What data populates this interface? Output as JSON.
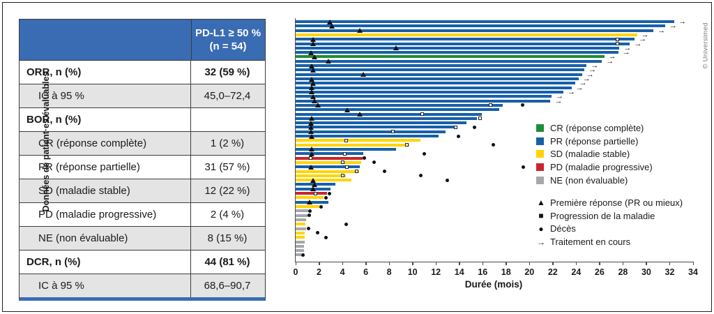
{
  "table": {
    "header": {
      "line1": "PD-L1 ≥ 50 %",
      "line2": "(n = 54)"
    },
    "rows": [
      {
        "label": "ORR, n (%)",
        "value": "32 (59 %)",
        "bold": true,
        "indent": false,
        "shade": false
      },
      {
        "label": "IC à 95 %",
        "value": "45,0–72,4",
        "bold": false,
        "indent": true,
        "shade": true
      },
      {
        "label": "BOR, n (%)",
        "value": "",
        "bold": true,
        "indent": false,
        "shade": false
      },
      {
        "label": "CR (réponse complète)",
        "value": "1 (2 %)",
        "bold": false,
        "indent": true,
        "shade": true
      },
      {
        "label": "PR (réponse partielle)",
        "value": "31 (57 %)",
        "bold": false,
        "indent": true,
        "shade": false
      },
      {
        "label": "SD (maladie stable)",
        "value": "12 (22 %)",
        "bold": false,
        "indent": true,
        "shade": true
      },
      {
        "label": "PD (maladie progressive)",
        "value": "2 (4 %)",
        "bold": false,
        "indent": true,
        "shade": false
      },
      {
        "label": "NE (non évaluable)",
        "value": "8 (15 %)",
        "bold": false,
        "indent": true,
        "shade": true
      },
      {
        "label": "DCR, n (%)",
        "value": "44 (81 %)",
        "bold": true,
        "indent": false,
        "shade": false
      },
      {
        "label": "IC à 95 %",
        "value": "68,6–90,7",
        "bold": false,
        "indent": true,
        "shade": true
      }
    ]
  },
  "colors": {
    "CR": "#1f8c3b",
    "PR": "#1760a8",
    "SD": "#ffd400",
    "PD": "#c9252c",
    "NE": "#a5a7aa",
    "header_blue": "#3a6cb4",
    "shade_gray": "#e4e4e4",
    "axis": "#4a4a4a",
    "marker": "#111111"
  },
  "credit": "© Universimed",
  "chart_data": {
    "type": "bar",
    "subtype": "swimmer-plot",
    "xlabel": "Durée (mois)",
    "ylabel": "Données de patient·es évaluables",
    "xlim": [
      0,
      34
    ],
    "xticks": [
      0,
      2,
      4,
      6,
      8,
      10,
      12,
      14,
      16,
      18,
      20,
      22,
      24,
      26,
      28,
      30,
      32,
      34
    ],
    "grid": false,
    "legend_position": "right-inside",
    "legend_colors": [
      {
        "key": "CR",
        "label": "CR (réponse complète)"
      },
      {
        "key": "PR",
        "label": "PR (réponse partielle)"
      },
      {
        "key": "SD",
        "label": "SD (maladie stable)"
      },
      {
        "key": "PD",
        "label": "PD (maladie progressive)"
      },
      {
        "key": "NE",
        "label": "NE (non évaluable)"
      }
    ],
    "legend_markers": [
      {
        "glyph": "▲",
        "label": "Première réponse (PR ou mieux)"
      },
      {
        "glyph": "■",
        "label": "Progression de la maladie"
      },
      {
        "glyph": "●",
        "label": "Décès"
      },
      {
        "glyph": "→",
        "label": "Traitement en cours"
      }
    ],
    "patients": [
      {
        "response": "PR",
        "duration": 32.4,
        "first_response": 2.9,
        "progression": null,
        "death": null,
        "ongoing": true
      },
      {
        "response": "PR",
        "duration": 31.6,
        "first_response": 3.1,
        "progression": null,
        "death": null,
        "ongoing": true
      },
      {
        "response": "PR",
        "duration": 30.6,
        "first_response": 5.5,
        "progression": null,
        "death": null,
        "ongoing": true
      },
      {
        "response": "SD",
        "duration": 29.2,
        "first_response": null,
        "progression": null,
        "death": null,
        "ongoing": true
      },
      {
        "response": "PR",
        "duration": 29.0,
        "first_response": 1.5,
        "progression": 27.5,
        "death": null,
        "ongoing": true
      },
      {
        "response": "PR",
        "duration": 28.6,
        "first_response": 1.5,
        "progression": 27.5,
        "death": null,
        "ongoing": true
      },
      {
        "response": "PR",
        "duration": 27.7,
        "first_response": 8.6,
        "progression": null,
        "death": null,
        "ongoing": true
      },
      {
        "response": "PR",
        "duration": 27.6,
        "first_response": 1.3,
        "progression": null,
        "death": null,
        "ongoing": true
      },
      {
        "response": "CR",
        "duration": 26.4,
        "first_response": 1.6,
        "progression": null,
        "death": null,
        "ongoing": true
      },
      {
        "response": "PR",
        "duration": 26.2,
        "first_response": 2.8,
        "progression": null,
        "death": null,
        "ongoing": true
      },
      {
        "response": "PR",
        "duration": 24.9,
        "first_response": 1.4,
        "progression": null,
        "death": null,
        "ongoing": true
      },
      {
        "response": "PR",
        "duration": 24.7,
        "first_response": 1.5,
        "progression": null,
        "death": null,
        "ongoing": true
      },
      {
        "response": "PR",
        "duration": 24.5,
        "first_response": 5.8,
        "progression": null,
        "death": null,
        "ongoing": true
      },
      {
        "response": "PR",
        "duration": 24.2,
        "first_response": 1.4,
        "progression": null,
        "death": null,
        "ongoing": true
      },
      {
        "response": "PR",
        "duration": 23.9,
        "first_response": 1.5,
        "progression": null,
        "death": null,
        "ongoing": true
      },
      {
        "response": "PR",
        "duration": 23.6,
        "first_response": 1.4,
        "progression": null,
        "death": null,
        "ongoing": true
      },
      {
        "response": "PR",
        "duration": 22.9,
        "first_response": 1.4,
        "progression": null,
        "death": null,
        "ongoing": true
      },
      {
        "response": "PR",
        "duration": 21.9,
        "first_response": 1.5,
        "progression": null,
        "death": null,
        "ongoing": true
      },
      {
        "response": "PR",
        "duration": 21.8,
        "first_response": 1.6,
        "progression": null,
        "death": null,
        "ongoing": true
      },
      {
        "response": "PR",
        "duration": 17.7,
        "first_response": 1.9,
        "progression": 16.7,
        "death": 19.4,
        "ongoing": false
      },
      {
        "response": "PR",
        "duration": 17.4,
        "first_response": 4.4,
        "progression": null,
        "death": null,
        "ongoing": false
      },
      {
        "response": "PR",
        "duration": 15.9,
        "first_response": 5.5,
        "progression": 10.8,
        "death": null,
        "ongoing": false
      },
      {
        "response": "PR",
        "duration": 15.5,
        "first_response": 1.4,
        "progression": 15.8,
        "death": null,
        "ongoing": false
      },
      {
        "response": "PR",
        "duration": 14.6,
        "first_response": 1.3,
        "progression": null,
        "death": null,
        "ongoing": false
      },
      {
        "response": "PR",
        "duration": 13.8,
        "first_response": 1.3,
        "progression": 13.7,
        "death": 15.3,
        "ongoing": false
      },
      {
        "response": "PR",
        "duration": 12.8,
        "first_response": 1.3,
        "progression": 8.3,
        "death": null,
        "ongoing": false
      },
      {
        "response": "PR",
        "duration": 12.2,
        "first_response": 1.4,
        "progression": null,
        "death": 13.9,
        "ongoing": false
      },
      {
        "response": "SD",
        "duration": 10.7,
        "first_response": null,
        "progression": 4.3,
        "death": null,
        "ongoing": false
      },
      {
        "response": "SD",
        "duration": 9.7,
        "first_response": null,
        "progression": 9.5,
        "death": 16.9,
        "ongoing": false
      },
      {
        "response": "PR",
        "duration": 8.6,
        "first_response": 1.4,
        "progression": null,
        "death": null,
        "ongoing": false
      },
      {
        "response": "PR",
        "duration": 5.8,
        "first_response": 1.4,
        "progression": 4.2,
        "death": 11.0,
        "ongoing": false
      },
      {
        "response": "PD",
        "duration": 5.7,
        "first_response": null,
        "progression": 1.3,
        "death": 5.9,
        "ongoing": false
      },
      {
        "response": "SD",
        "duration": 5.6,
        "first_response": null,
        "progression": 4.0,
        "death": 6.7,
        "ongoing": false
      },
      {
        "response": "PR",
        "duration": 5.5,
        "first_response": 1.3,
        "progression": 4.4,
        "death": 19.5,
        "ongoing": false
      },
      {
        "response": "SD",
        "duration": 5.4,
        "first_response": null,
        "progression": 5.2,
        "death": 7.6,
        "ongoing": false
      },
      {
        "response": "SD",
        "duration": 4.3,
        "first_response": null,
        "progression": 4.0,
        "death": 10.7,
        "ongoing": false
      },
      {
        "response": "SD",
        "duration": 4.8,
        "first_response": 1.5,
        "progression": null,
        "death": 13.0,
        "ongoing": false
      },
      {
        "response": "PR",
        "duration": 3.4,
        "first_response": 1.6,
        "progression": null,
        "death": null,
        "ongoing": false
      },
      {
        "response": "PR",
        "duration": 3.0,
        "first_response": 1.5,
        "progression": null,
        "death": null,
        "ongoing": false
      },
      {
        "response": "PD",
        "duration": 2.7,
        "first_response": null,
        "progression": 1.7,
        "death": 2.9,
        "ongoing": false
      },
      {
        "response": "SD",
        "duration": 2.4,
        "first_response": null,
        "progression": null,
        "death": 2.6,
        "ongoing": false
      },
      {
        "response": "PR",
        "duration": 2.8,
        "first_response": 1.2,
        "progression": null,
        "death": null,
        "ongoing": false
      },
      {
        "response": "SD",
        "duration": 2.0,
        "first_response": null,
        "progression": null,
        "death": 2.2,
        "ongoing": false
      },
      {
        "response": "NE",
        "duration": 1.05,
        "first_response": null,
        "progression": null,
        "death": 1.2,
        "ongoing": false
      },
      {
        "response": "NE",
        "duration": 1.0,
        "first_response": null,
        "progression": null,
        "death": 1.15,
        "ongoing": false
      },
      {
        "response": "NE",
        "duration": 0.9,
        "first_response": null,
        "progression": null,
        "death": null,
        "ongoing": false
      },
      {
        "response": "SD",
        "duration": 0.85,
        "first_response": null,
        "progression": null,
        "death": 4.3,
        "ongoing": false
      },
      {
        "response": "NE",
        "duration": 0.9,
        "first_response": null,
        "progression": null,
        "death": 1.1,
        "ongoing": false
      },
      {
        "response": "SD",
        "duration": 0.8,
        "first_response": null,
        "progression": null,
        "death": 1.9,
        "ongoing": false
      },
      {
        "response": "SD",
        "duration": 0.8,
        "first_response": null,
        "progression": null,
        "death": 2.6,
        "ongoing": false
      },
      {
        "response": "NE",
        "duration": 0.8,
        "first_response": null,
        "progression": null,
        "death": null,
        "ongoing": false
      },
      {
        "response": "NE",
        "duration": 0.7,
        "first_response": null,
        "progression": null,
        "death": null,
        "ongoing": false
      },
      {
        "response": "NE",
        "duration": 0.7,
        "first_response": null,
        "progression": null,
        "death": null,
        "ongoing": false
      },
      {
        "response": "NE",
        "duration": 0.5,
        "first_response": null,
        "progression": null,
        "death": 0.65,
        "ongoing": false
      }
    ]
  }
}
